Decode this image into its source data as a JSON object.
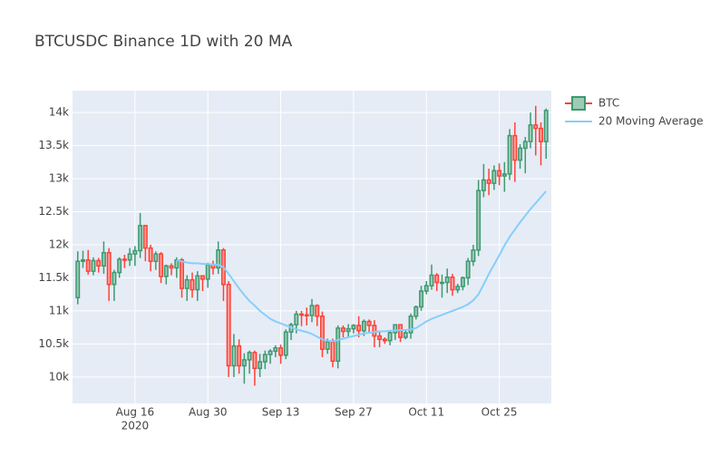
{
  "chart_data": {
    "type": "candlestick",
    "title": "BTCUSDC Binance 1D with 20 MA",
    "x": [
      "2020-08-05",
      "2020-08-06",
      "2020-08-07",
      "2020-08-08",
      "2020-08-09",
      "2020-08-10",
      "2020-08-11",
      "2020-08-12",
      "2020-08-13",
      "2020-08-14",
      "2020-08-15",
      "2020-08-16",
      "2020-08-17",
      "2020-08-18",
      "2020-08-19",
      "2020-08-20",
      "2020-08-21",
      "2020-08-22",
      "2020-08-23",
      "2020-08-24",
      "2020-08-25",
      "2020-08-26",
      "2020-08-27",
      "2020-08-28",
      "2020-08-29",
      "2020-08-30",
      "2020-08-31",
      "2020-09-01",
      "2020-09-02",
      "2020-09-03",
      "2020-09-04",
      "2020-09-05",
      "2020-09-06",
      "2020-09-07",
      "2020-09-08",
      "2020-09-09",
      "2020-09-10",
      "2020-09-11",
      "2020-09-12",
      "2020-09-13",
      "2020-09-14",
      "2020-09-15",
      "2020-09-16",
      "2020-09-17",
      "2020-09-18",
      "2020-09-19",
      "2020-09-20",
      "2020-09-21",
      "2020-09-22",
      "2020-09-23",
      "2020-09-24",
      "2020-09-25",
      "2020-09-26",
      "2020-09-27",
      "2020-09-28",
      "2020-09-29",
      "2020-09-30",
      "2020-10-01",
      "2020-10-02",
      "2020-10-03",
      "2020-10-04",
      "2020-10-05",
      "2020-10-06",
      "2020-10-07",
      "2020-10-08",
      "2020-10-09",
      "2020-10-10",
      "2020-10-11",
      "2020-10-12",
      "2020-10-13",
      "2020-10-14",
      "2020-10-15",
      "2020-10-16",
      "2020-10-17",
      "2020-10-18",
      "2020-10-19",
      "2020-10-20",
      "2020-10-21",
      "2020-10-22",
      "2020-10-23",
      "2020-10-24",
      "2020-10-25",
      "2020-10-26",
      "2020-10-27",
      "2020-10-28",
      "2020-10-29",
      "2020-10-30",
      "2020-10-31",
      "2020-11-01",
      "2020-11-02",
      "2020-11-03"
    ],
    "candles": {
      "name": "BTC",
      "increasing_color": "#3D9970",
      "increasing_fill": "#9ecbb5",
      "decreasing_color": "#FF4136",
      "decreasing_fill": "#ff9f9a",
      "open": [
        11200,
        11750,
        11770,
        11600,
        11760,
        11680,
        11880,
        11400,
        11580,
        11780,
        11770,
        11860,
        11910,
        12290,
        11950,
        11750,
        11860,
        11520,
        11680,
        11650,
        11770,
        11340,
        11470,
        11320,
        11530,
        11480,
        11700,
        11650,
        11920,
        11400,
        10170,
        10470,
        10170,
        10260,
        10370,
        10130,
        10230,
        10340,
        10390,
        10440,
        10330,
        10680,
        10790,
        10950,
        10940,
        10930,
        11080,
        10920,
        10420,
        10530,
        10240,
        10740,
        10690,
        10730,
        10780,
        10700,
        10840,
        10780,
        10620,
        10570,
        10550,
        10670,
        10790,
        10600,
        10670,
        10920,
        11060,
        11300,
        11380,
        11540,
        11430,
        11430,
        11510,
        11320,
        11370,
        11500,
        11750,
        11920,
        12820,
        12980,
        12930,
        13120,
        13040,
        13070,
        13650,
        13280,
        13460,
        13560,
        13810,
        13760,
        13560
      ],
      "high": [
        11900,
        11910,
        11920,
        11810,
        11800,
        12050,
        11950,
        11620,
        11810,
        11850,
        11950,
        11980,
        12480,
        12300,
        12000,
        11900,
        11890,
        11700,
        11720,
        11810,
        11800,
        11540,
        11580,
        11600,
        11540,
        11730,
        11760,
        12050,
        11950,
        11450,
        10650,
        10570,
        10360,
        10400,
        10400,
        10350,
        10400,
        10420,
        10480,
        10490,
        10720,
        10820,
        11000,
        11000,
        11050,
        11180,
        11100,
        10990,
        10580,
        10580,
        10780,
        10780,
        10800,
        10800,
        10920,
        10870,
        10870,
        10860,
        10680,
        10600,
        10700,
        10800,
        10800,
        10700,
        10960,
        11080,
        11380,
        11450,
        11700,
        11570,
        11550,
        11640,
        11560,
        11410,
        11520,
        11800,
        12000,
        12980,
        13220,
        13150,
        13200,
        13230,
        13250,
        13750,
        13850,
        13520,
        13630,
        14000,
        14100,
        13850,
        14060
      ],
      "low": [
        11100,
        11650,
        11550,
        11540,
        11580,
        11560,
        11150,
        11150,
        11500,
        11650,
        11680,
        11680,
        11800,
        11750,
        11600,
        11620,
        11420,
        11400,
        11540,
        11500,
        11200,
        11150,
        11200,
        11150,
        11300,
        11350,
        11550,
        11560,
        11150,
        10000,
        10000,
        10050,
        9900,
        10050,
        9870,
        10000,
        10120,
        10200,
        10300,
        10200,
        10270,
        10560,
        10660,
        10770,
        10780,
        10830,
        10770,
        10300,
        10350,
        10150,
        10130,
        10600,
        10600,
        10660,
        10600,
        10620,
        10660,
        10450,
        10450,
        10500,
        10480,
        10560,
        10530,
        10570,
        10580,
        10870,
        11000,
        11250,
        11320,
        11300,
        11200,
        11270,
        11230,
        11270,
        11310,
        11390,
        11680,
        11830,
        12720,
        12750,
        12830,
        12900,
        12800,
        12980,
        12950,
        13150,
        13080,
        13460,
        13350,
        13200,
        13300
      ],
      "close": [
        11750,
        11770,
        11600,
        11760,
        11680,
        11880,
        11400,
        11580,
        11780,
        11770,
        11860,
        11910,
        12290,
        11950,
        11750,
        11860,
        11520,
        11680,
        11650,
        11770,
        11340,
        11470,
        11320,
        11530,
        11480,
        11700,
        11650,
        11920,
        11400,
        10170,
        10470,
        10170,
        10260,
        10370,
        10130,
        10230,
        10340,
        10390,
        10440,
        10330,
        10680,
        10790,
        10950,
        10940,
        10930,
        11080,
        10920,
        10420,
        10530,
        10240,
        10740,
        10690,
        10730,
        10780,
        10700,
        10840,
        10780,
        10620,
        10570,
        10550,
        10670,
        10790,
        10600,
        10670,
        10920,
        11060,
        11300,
        11380,
        11540,
        11430,
        11430,
        11510,
        11320,
        11370,
        11500,
        11750,
        11920,
        12820,
        12980,
        12930,
        13120,
        13040,
        13070,
        13650,
        13280,
        13460,
        13560,
        13810,
        13760,
        13560,
        14030
      ]
    },
    "series": [
      {
        "name": "20 Moving Average",
        "color": "#87CEFA",
        "values": [
          null,
          null,
          null,
          null,
          null,
          null,
          null,
          null,
          null,
          null,
          null,
          null,
          null,
          null,
          null,
          null,
          null,
          null,
          null,
          11770,
          11750,
          11730,
          11720,
          11720,
          11710,
          11710,
          11700,
          11700,
          11660,
          11560,
          11450,
          11340,
          11240,
          11150,
          11080,
          11000,
          10940,
          10880,
          10840,
          10810,
          10780,
          10750,
          10720,
          10700,
          10680,
          10650,
          10610,
          10570,
          10550,
          10540,
          10560,
          10580,
          10600,
          10620,
          10640,
          10660,
          10670,
          10680,
          10690,
          10690,
          10700,
          10700,
          10710,
          10710,
          10720,
          10740,
          10790,
          10840,
          10880,
          10910,
          10940,
          10970,
          11000,
          11030,
          11060,
          11100,
          11160,
          11250,
          11400,
          11560,
          11700,
          11840,
          11990,
          12120,
          12230,
          12340,
          12440,
          12540,
          12630,
          12720,
          12810
        ]
      }
    ],
    "xlim": [
      "2020-08-04",
      "2020-11-04"
    ],
    "xticks": [
      {
        "value": "2020-08-16",
        "label": "Aug 16"
      },
      {
        "value": "2020-08-30",
        "label": "Aug 30"
      },
      {
        "value": "2020-09-13",
        "label": "Sep 13"
      },
      {
        "value": "2020-09-27",
        "label": "Sep 27"
      },
      {
        "value": "2020-10-11",
        "label": "Oct 11"
      },
      {
        "value": "2020-10-25",
        "label": "Oct 25"
      }
    ],
    "x_year_label": "2020",
    "ylim": [
      9600,
      14330
    ],
    "yticks": [
      {
        "value": 10000,
        "label": "10k"
      },
      {
        "value": 10500,
        "label": "10.5k"
      },
      {
        "value": 11000,
        "label": "11k"
      },
      {
        "value": 11500,
        "label": "11.5k"
      },
      {
        "value": 12000,
        "label": "12k"
      },
      {
        "value": 12500,
        "label": "12.5k"
      },
      {
        "value": 13000,
        "label": "13k"
      },
      {
        "value": 13500,
        "label": "13.5k"
      },
      {
        "value": 14000,
        "label": "14k"
      }
    ],
    "grid": true,
    "legend": "right"
  }
}
